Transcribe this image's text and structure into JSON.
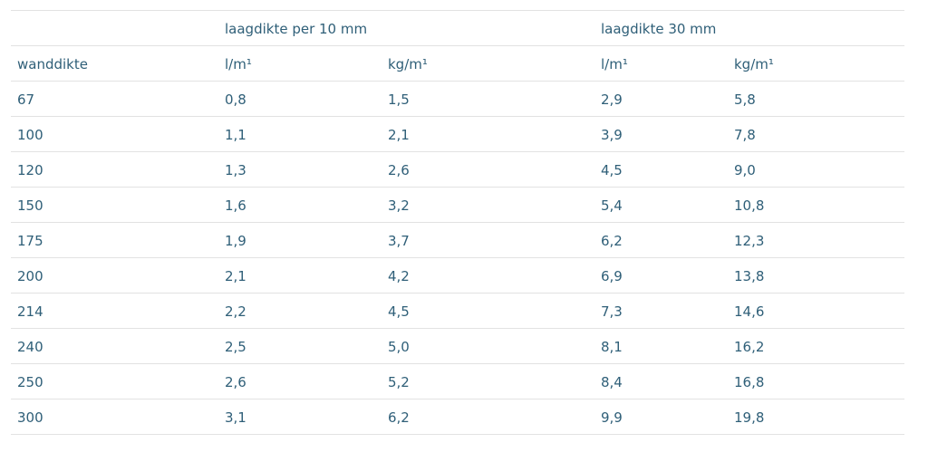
{
  "table": {
    "group_headers": {
      "wanddikte_group": "",
      "group1": "laagdikte per 10 mm",
      "group2": "laagdikte 30 mm"
    },
    "columns": [
      "wanddikte",
      "l/m¹",
      "kg/m¹",
      "l/m¹",
      "kg/m¹"
    ],
    "rows": [
      [
        "67",
        "0,8",
        "1,5",
        "2,9",
        "5,8"
      ],
      [
        "100",
        "1,1",
        "2,1",
        "3,9",
        "7,8"
      ],
      [
        "120",
        "1,3",
        "2,6",
        "4,5",
        "9,0"
      ],
      [
        "150",
        "1,6",
        "3,2",
        "5,4",
        "10,8"
      ],
      [
        "175",
        "1,9",
        "3,7",
        "6,2",
        "12,3"
      ],
      [
        "200",
        "2,1",
        "4,2",
        "6,9",
        "13,8"
      ],
      [
        "214",
        "2,2",
        "4,5",
        "7,3",
        "14,6"
      ],
      [
        "240",
        "2,5",
        "5,0",
        "8,1",
        "16,2"
      ],
      [
        "250",
        "2,6",
        "5,2",
        "8,4",
        "16,8"
      ],
      [
        "300",
        "3,1",
        "6,2",
        "9,9",
        "19,8"
      ]
    ]
  },
  "colors": {
    "text": "#2f5f78",
    "divider": "#e2e2e2"
  }
}
